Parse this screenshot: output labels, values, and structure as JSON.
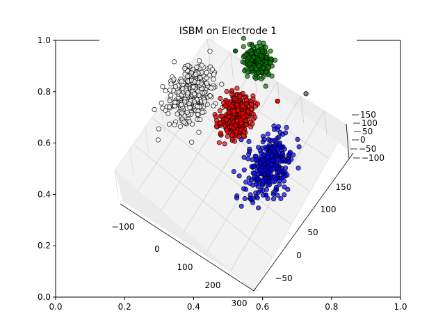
{
  "chart_data": {
    "type": "scatter",
    "title": "ISBM on Electrode 1",
    "outer_axes": {
      "xlim": [
        0,
        1
      ],
      "ylim": [
        0,
        1
      ],
      "xticks": [
        "0.0",
        "0.2",
        "0.4",
        "0.6",
        "0.8",
        "1.0"
      ],
      "yticks": [
        "0.0",
        "0.2",
        "0.4",
        "0.6",
        "0.8",
        "1.0"
      ]
    },
    "axes3d": {
      "x_ticks": [
        "−100",
        "0",
        "100",
        "200",
        "300"
      ],
      "y_ticks": [
        "−50",
        "0",
        "50",
        "100",
        "150"
      ],
      "z_ticks": [
        "−100",
        "−50",
        "0",
        "50",
        "100",
        "150"
      ],
      "xlim": [
        -150,
        320
      ],
      "ylim": [
        -80,
        190
      ],
      "zlim": [
        -110,
        170
      ],
      "grid": true
    },
    "series": [
      {
        "color": "#008000",
        "count": 260,
        "center": [
          35,
          175,
          40
        ],
        "spread": [
          18,
          10,
          25
        ]
      },
      {
        "color": "#ffffff",
        "count": 360,
        "center": [
          -75,
          75,
          0
        ],
        "spread": [
          28,
          20,
          25
        ]
      },
      {
        "color": "#ff0000",
        "count": 340,
        "center": [
          55,
          95,
          0
        ],
        "spread": [
          20,
          16,
          25
        ]
      },
      {
        "color": "#0000ff",
        "count": 330,
        "center": [
          195,
          70,
          0
        ],
        "spread": [
          26,
          22,
          25
        ]
      }
    ],
    "outliers": [
      {
        "color": "#808080",
        "x": 185,
        "y": 185
      },
      {
        "color": "#ff0000",
        "x": 130,
        "y": 150
      },
      {
        "color": "#008000",
        "x": -30,
        "y": 165
      }
    ]
  }
}
